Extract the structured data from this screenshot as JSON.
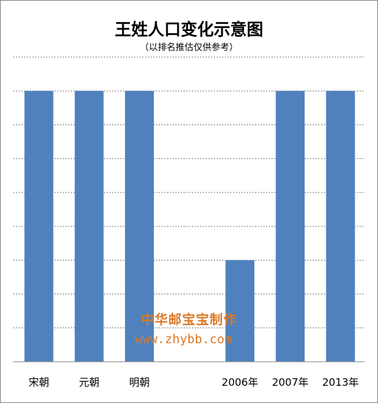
{
  "chart_data": {
    "type": "bar",
    "title": "王姓人口变化示意图",
    "subtitle": "（以排名推估仅供参考）",
    "categories": [
      "宋朝",
      "元朝",
      "明朝",
      "",
      "2006年",
      "2007年",
      "2013年"
    ],
    "values": [
      8,
      8,
      8,
      0,
      3,
      8,
      8
    ],
    "ylim": [
      0,
      9
    ],
    "grid": true,
    "legend": "none",
    "bar_color": "#4f81bd",
    "grid_color": "#7f7f7f"
  },
  "watermark": {
    "line1": "中华邮宝宝制作",
    "line2": "www.zhybb.com"
  }
}
